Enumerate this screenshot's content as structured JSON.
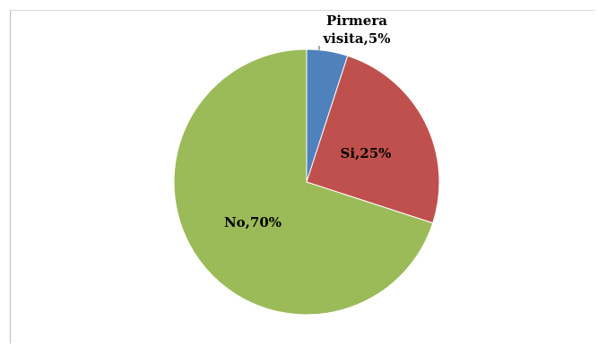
{
  "chart_data": {
    "type": "pie",
    "categories": [
      "Pirmera visita",
      "Si",
      "No"
    ],
    "values": [
      5,
      25,
      70
    ],
    "data_labels": [
      "Pirmera visita,5%",
      "Si,25%",
      "No,70%"
    ],
    "label_lines": [
      [
        "Pirmera",
        "visita,5%"
      ],
      [
        "Si,25%"
      ],
      [
        "No,70%"
      ]
    ],
    "colors": [
      "#4f81bd",
      "#c0504d",
      "#9bbb59"
    ],
    "start_angle_deg": 0,
    "direction": "clockwise",
    "legend": "none"
  }
}
